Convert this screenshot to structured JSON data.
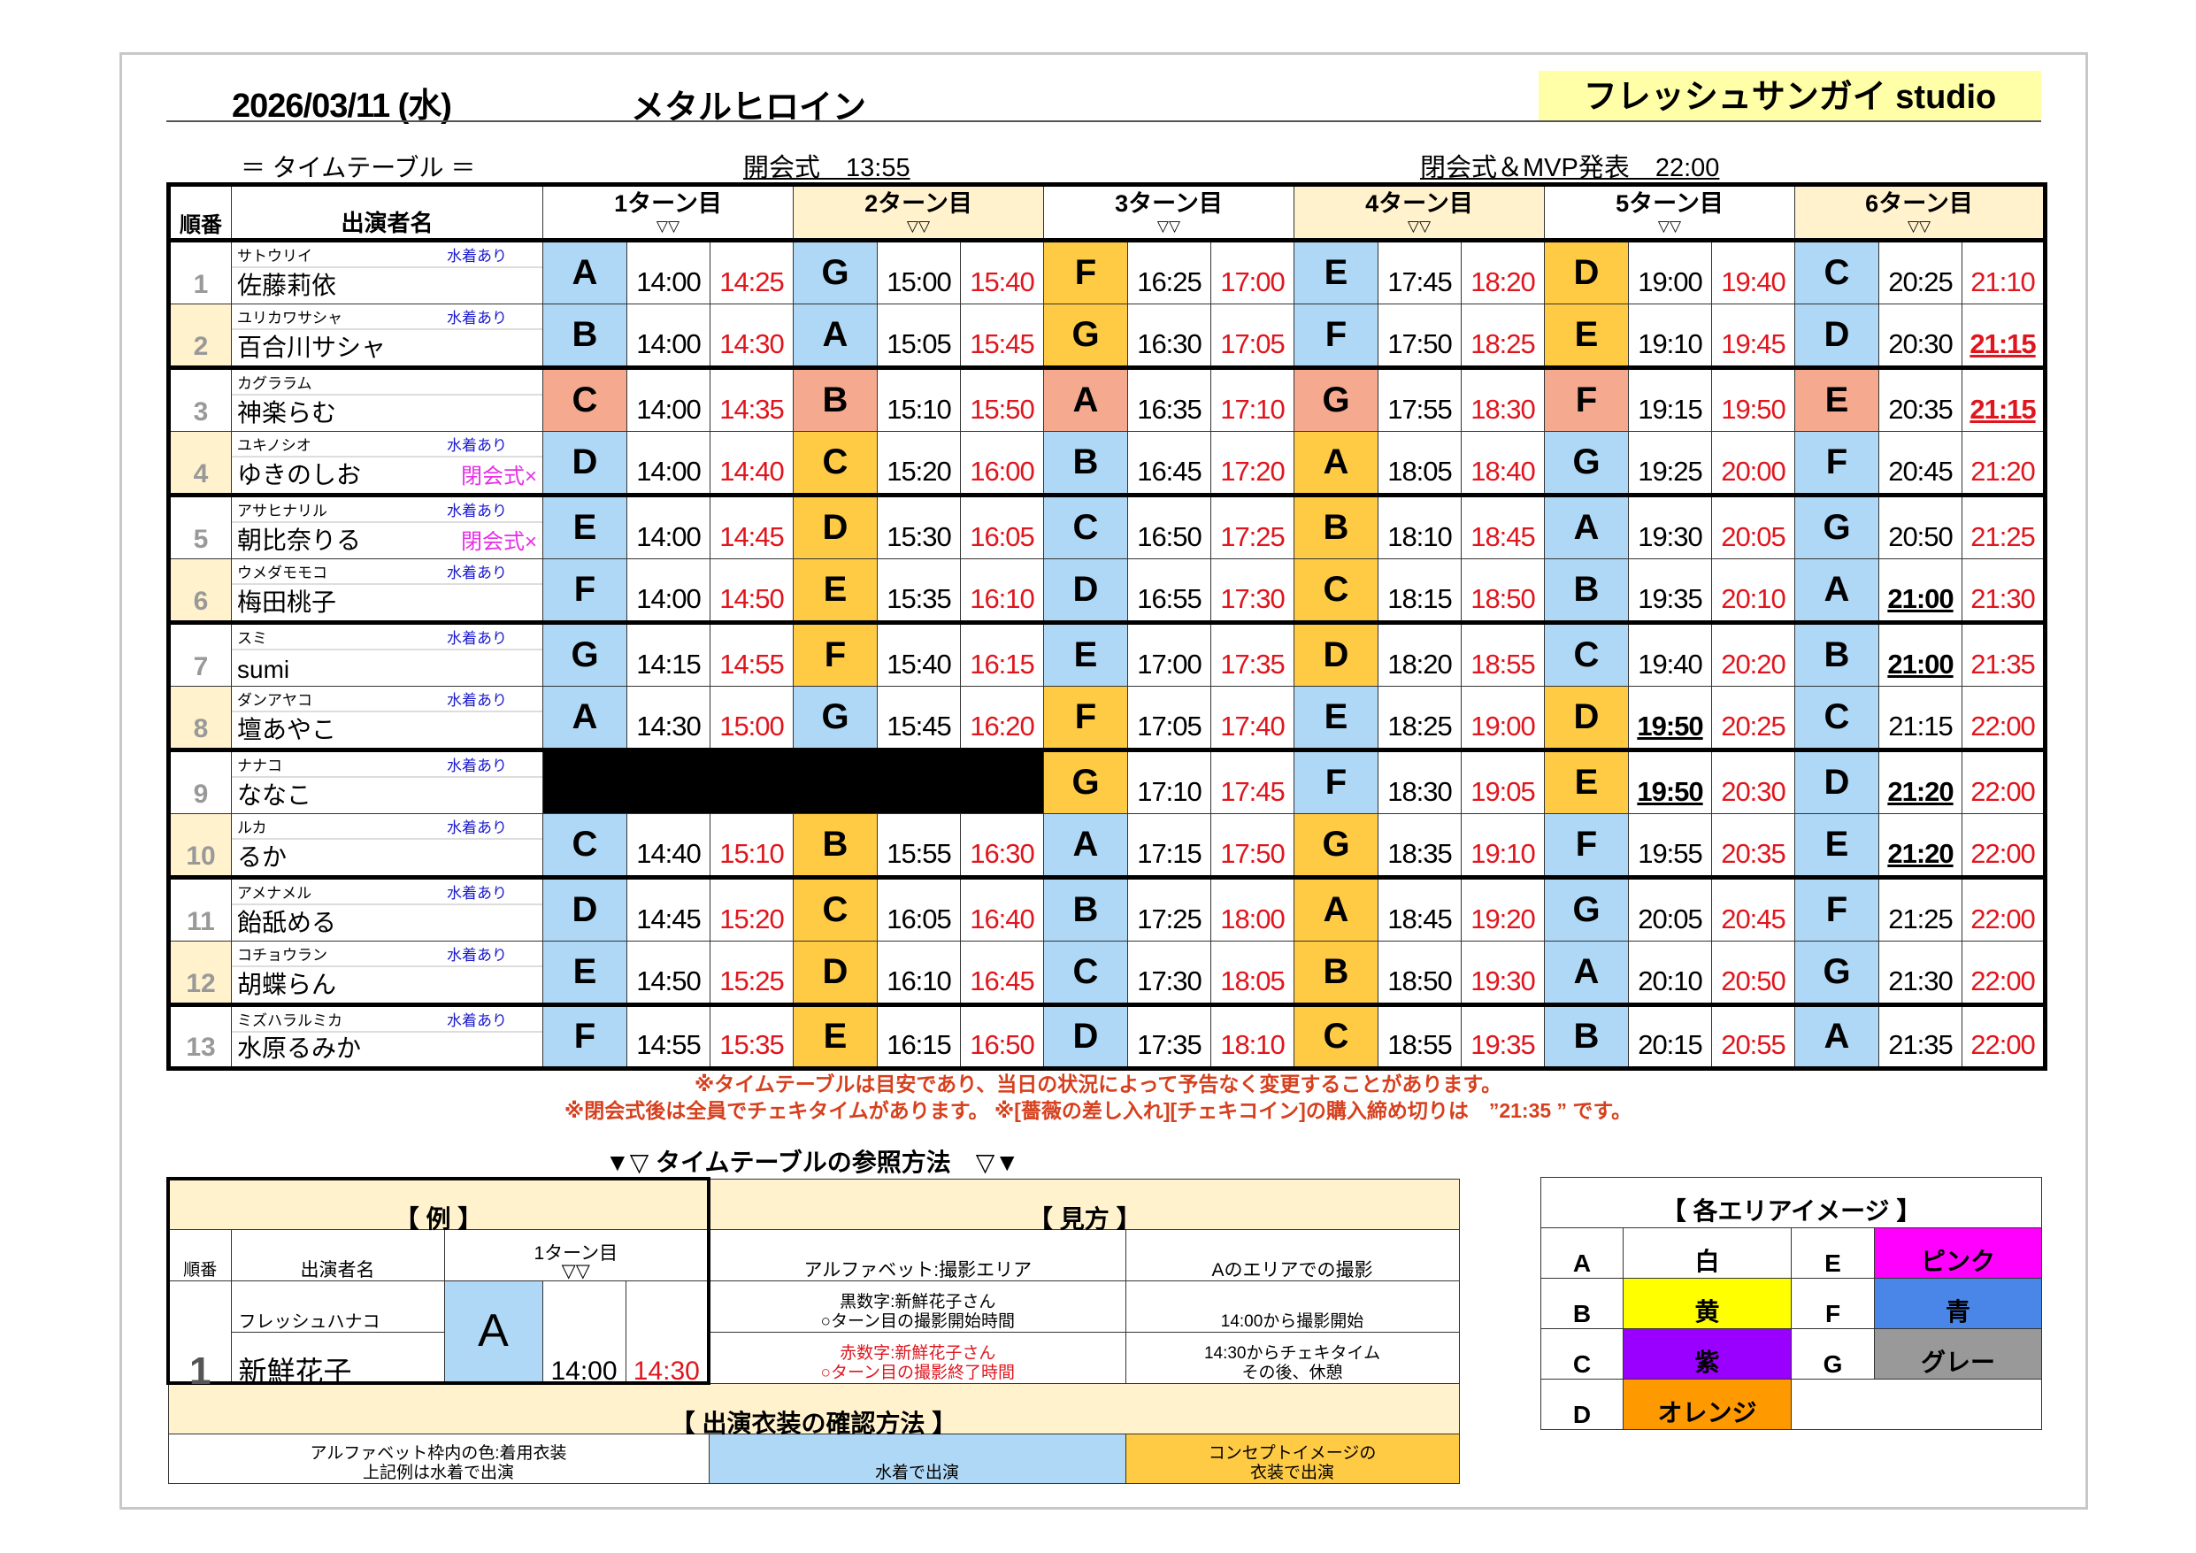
{
  "header": {
    "date": "2026/03/11 (水)",
    "event_title": "メタルヒロイン",
    "venue": "フレッシュサンガイ studio",
    "timetable_label": "＝ タイムテーブル ＝",
    "opening": "開会式　13:55",
    "closing": "閉会式＆MVP発表　22:00"
  },
  "columns": {
    "order": "順番",
    "performer": "出演者名",
    "turns": [
      "1ターン目",
      "2ターン目",
      "3ターン目",
      "4ターン目",
      "5ターン目",
      "6ターン目"
    ],
    "arrow": "▽▽"
  },
  "rows": [
    {
      "no": "1",
      "kana": "サトウリイ",
      "name": "佐藤莉依",
      "swim": "水着あり",
      "note": "",
      "turns": [
        {
          "area": "A",
          "start": "14:00",
          "end": "14:25",
          "color": "blue"
        },
        {
          "area": "G",
          "start": "15:00",
          "end": "15:40",
          "color": "blue"
        },
        {
          "area": "F",
          "start": "16:25",
          "end": "17:00",
          "color": "yellow"
        },
        {
          "area": "E",
          "start": "17:45",
          "end": "18:20",
          "color": "blue"
        },
        {
          "area": "D",
          "start": "19:00",
          "end": "19:40",
          "color": "yellow"
        },
        {
          "area": "C",
          "start": "20:25",
          "end": "21:10",
          "color": "blue"
        }
      ]
    },
    {
      "no": "2",
      "kana": "ユリカワサシャ",
      "name": "百合川サシャ",
      "swim": "水着あり",
      "note": "",
      "turns": [
        {
          "area": "B",
          "start": "14:00",
          "end": "14:30",
          "color": "blue"
        },
        {
          "area": "A",
          "start": "15:05",
          "end": "15:45",
          "color": "blue"
        },
        {
          "area": "G",
          "start": "16:30",
          "end": "17:05",
          "color": "yellow"
        },
        {
          "area": "F",
          "start": "17:50",
          "end": "18:25",
          "color": "blue"
        },
        {
          "area": "E",
          "start": "19:10",
          "end": "19:45",
          "color": "yellow"
        },
        {
          "area": "D",
          "start": "20:30",
          "end": "21:15",
          "color": "blue",
          "underline": "end"
        }
      ]
    },
    {
      "no": "3",
      "kana": "カグララム",
      "name": "神楽らむ",
      "swim": "",
      "note": "",
      "turns": [
        {
          "area": "C",
          "start": "14:00",
          "end": "14:35",
          "color": "salmon"
        },
        {
          "area": "B",
          "start": "15:10",
          "end": "15:50",
          "color": "salmon"
        },
        {
          "area": "A",
          "start": "16:35",
          "end": "17:10",
          "color": "salmon"
        },
        {
          "area": "G",
          "start": "17:55",
          "end": "18:30",
          "color": "salmon"
        },
        {
          "area": "F",
          "start": "19:15",
          "end": "19:50",
          "color": "salmon"
        },
        {
          "area": "E",
          "start": "20:35",
          "end": "21:15",
          "color": "salmon",
          "underline": "end"
        }
      ]
    },
    {
      "no": "4",
      "kana": "ユキノシオ",
      "name": "ゆきのしお",
      "swim": "水着あり",
      "note": "閉会式×",
      "turns": [
        {
          "area": "D",
          "start": "14:00",
          "end": "14:40",
          "color": "blue"
        },
        {
          "area": "C",
          "start": "15:20",
          "end": "16:00",
          "color": "yellow"
        },
        {
          "area": "B",
          "start": "16:45",
          "end": "17:20",
          "color": "blue"
        },
        {
          "area": "A",
          "start": "18:05",
          "end": "18:40",
          "color": "yellow"
        },
        {
          "area": "G",
          "start": "19:25",
          "end": "20:00",
          "color": "blue"
        },
        {
          "area": "F",
          "start": "20:45",
          "end": "21:20",
          "color": "blue"
        }
      ]
    },
    {
      "no": "5",
      "kana": "アサヒナリル",
      "name": "朝比奈りる",
      "swim": "水着あり",
      "note": "閉会式×",
      "turns": [
        {
          "area": "E",
          "start": "14:00",
          "end": "14:45",
          "color": "blue"
        },
        {
          "area": "D",
          "start": "15:30",
          "end": "16:05",
          "color": "yellow"
        },
        {
          "area": "C",
          "start": "16:50",
          "end": "17:25",
          "color": "blue"
        },
        {
          "area": "B",
          "start": "18:10",
          "end": "18:45",
          "color": "yellow"
        },
        {
          "area": "A",
          "start": "19:30",
          "end": "20:05",
          "color": "blue"
        },
        {
          "area": "G",
          "start": "20:50",
          "end": "21:25",
          "color": "blue"
        }
      ]
    },
    {
      "no": "6",
      "kana": "ウメダモモコ",
      "name": "梅田桃子",
      "swim": "水着あり",
      "note": "",
      "turns": [
        {
          "area": "F",
          "start": "14:00",
          "end": "14:50",
          "color": "blue"
        },
        {
          "area": "E",
          "start": "15:35",
          "end": "16:10",
          "color": "yellow"
        },
        {
          "area": "D",
          "start": "16:55",
          "end": "17:30",
          "color": "blue"
        },
        {
          "area": "C",
          "start": "18:15",
          "end": "18:50",
          "color": "yellow"
        },
        {
          "area": "B",
          "start": "19:35",
          "end": "20:10",
          "color": "blue"
        },
        {
          "area": "A",
          "start": "21:00",
          "end": "21:30",
          "color": "blue",
          "underline": "start"
        }
      ]
    },
    {
      "no": "7",
      "kana": "スミ",
      "name": "sumi",
      "swim": "水着あり",
      "note": "",
      "turns": [
        {
          "area": "G",
          "start": "14:15",
          "end": "14:55",
          "color": "blue"
        },
        {
          "area": "F",
          "start": "15:40",
          "end": "16:15",
          "color": "yellow"
        },
        {
          "area": "E",
          "start": "17:00",
          "end": "17:35",
          "color": "blue"
        },
        {
          "area": "D",
          "start": "18:20",
          "end": "18:55",
          "color": "yellow"
        },
        {
          "area": "C",
          "start": "19:40",
          "end": "20:20",
          "color": "blue"
        },
        {
          "area": "B",
          "start": "21:00",
          "end": "21:35",
          "color": "blue",
          "underline": "start"
        }
      ]
    },
    {
      "no": "8",
      "kana": "ダンアヤコ",
      "name": "壇あやこ",
      "swim": "水着あり",
      "note": "",
      "turns": [
        {
          "area": "A",
          "start": "14:30",
          "end": "15:00",
          "color": "blue"
        },
        {
          "area": "G",
          "start": "15:45",
          "end": "16:20",
          "color": "blue"
        },
        {
          "area": "F",
          "start": "17:05",
          "end": "17:40",
          "color": "yellow"
        },
        {
          "area": "E",
          "start": "18:25",
          "end": "19:00",
          "color": "blue"
        },
        {
          "area": "D",
          "start": "19:50",
          "end": "20:25",
          "color": "yellow",
          "underline": "start"
        },
        {
          "area": "C",
          "start": "21:15",
          "end": "22:00",
          "color": "blue"
        }
      ]
    },
    {
      "no": "9",
      "kana": "ナナコ",
      "name": "ななこ",
      "swim": "水着あり",
      "note": "",
      "turns": [
        null,
        null,
        {
          "area": "G",
          "start": "17:10",
          "end": "17:45",
          "color": "yellow"
        },
        {
          "area": "F",
          "start": "18:30",
          "end": "19:05",
          "color": "blue"
        },
        {
          "area": "E",
          "start": "19:50",
          "end": "20:30",
          "color": "yellow",
          "underline": "start"
        },
        {
          "area": "D",
          "start": "21:20",
          "end": "22:00",
          "color": "blue",
          "underline": "start"
        }
      ]
    },
    {
      "no": "10",
      "kana": "ルカ",
      "name": "るか",
      "swim": "水着あり",
      "note": "",
      "turns": [
        {
          "area": "C",
          "start": "14:40",
          "end": "15:10",
          "color": "blue"
        },
        {
          "area": "B",
          "start": "15:55",
          "end": "16:30",
          "color": "yellow"
        },
        {
          "area": "A",
          "start": "17:15",
          "end": "17:50",
          "color": "blue"
        },
        {
          "area": "G",
          "start": "18:35",
          "end": "19:10",
          "color": "yellow"
        },
        {
          "area": "F",
          "start": "19:55",
          "end": "20:35",
          "color": "blue"
        },
        {
          "area": "E",
          "start": "21:20",
          "end": "22:00",
          "color": "blue",
          "underline": "start"
        }
      ]
    },
    {
      "no": "11",
      "kana": "アメナメル",
      "name": "飴舐める",
      "swim": "水着あり",
      "note": "",
      "turns": [
        {
          "area": "D",
          "start": "14:45",
          "end": "15:20",
          "color": "blue"
        },
        {
          "area": "C",
          "start": "16:05",
          "end": "16:40",
          "color": "yellow"
        },
        {
          "area": "B",
          "start": "17:25",
          "end": "18:00",
          "color": "blue"
        },
        {
          "area": "A",
          "start": "18:45",
          "end": "19:20",
          "color": "yellow"
        },
        {
          "area": "G",
          "start": "20:05",
          "end": "20:45",
          "color": "blue"
        },
        {
          "area": "F",
          "start": "21:25",
          "end": "22:00",
          "color": "blue"
        }
      ]
    },
    {
      "no": "12",
      "kana": "コチョウラン",
      "name": "胡蝶らん",
      "swim": "水着あり",
      "note": "",
      "turns": [
        {
          "area": "E",
          "start": "14:50",
          "end": "15:25",
          "color": "blue"
        },
        {
          "area": "D",
          "start": "16:10",
          "end": "16:45",
          "color": "yellow"
        },
        {
          "area": "C",
          "start": "17:30",
          "end": "18:05",
          "color": "blue"
        },
        {
          "area": "B",
          "start": "18:50",
          "end": "19:30",
          "color": "yellow"
        },
        {
          "area": "A",
          "start": "20:10",
          "end": "20:50",
          "color": "blue"
        },
        {
          "area": "G",
          "start": "21:30",
          "end": "22:00",
          "color": "blue"
        }
      ]
    },
    {
      "no": "13",
      "kana": "ミズハラルミカ",
      "name": "水原るみか",
      "swim": "水着あり",
      "note": "",
      "turns": [
        {
          "area": "F",
          "start": "14:55",
          "end": "15:35",
          "color": "blue"
        },
        {
          "area": "E",
          "start": "16:15",
          "end": "16:50",
          "color": "yellow"
        },
        {
          "area": "D",
          "start": "17:35",
          "end": "18:10",
          "color": "blue"
        },
        {
          "area": "C",
          "start": "18:55",
          "end": "19:35",
          "color": "yellow"
        },
        {
          "area": "B",
          "start": "20:15",
          "end": "20:55",
          "color": "blue"
        },
        {
          "area": "A",
          "start": "21:35",
          "end": "22:00",
          "color": "blue"
        }
      ]
    }
  ],
  "notes": [
    "※タイムテーブルは目安であり、当日の状況によって予告なく変更することがあります。",
    "※閉会式後は全員でチェキタイムがあります。 ※[薔薇の差し入れ][チェキコイン]の購入締め切りは　”21:35 ” です。"
  ],
  "reference": {
    "title": "▼▽ タイムテーブルの参照方法　▽▼",
    "example_header": "【 例 】",
    "howto_header": "【 見方 】",
    "example": {
      "order_label": "順番",
      "name_label": "出演者名",
      "turn_label": "1ターン目",
      "arrow": "▽▽",
      "no": "1",
      "kana": "フレッシュハナコ",
      "name": "新鮮花子",
      "area": "A",
      "start": "14:00",
      "end": "14:30"
    },
    "howto": [
      [
        "アルファベット:撮影エリア",
        "Aのエリアでの撮影"
      ],
      [
        "黒数字:新鮮花子さん\n○ターン目の撮影開始時間",
        "14:00から撮影開始"
      ],
      [
        "赤数字:新鮮花子さん\n○ターン目の撮影終了時間",
        "14:30からチェキタイム\nその後、休憩"
      ]
    ],
    "costume_header": "【 出演衣装の確認方法 】",
    "costume": [
      "アルファベット枠内の色:着用衣装\n上記例は水着で出演",
      "水着で出演",
      "コンセプトイメージの\n衣装で出演"
    ]
  },
  "legend": {
    "title": "【 各エリアイメージ 】",
    "items": [
      {
        "area": "A",
        "label": "白",
        "color": "#ffffff"
      },
      {
        "area": "B",
        "label": "黄",
        "color": "#ffff00"
      },
      {
        "area": "C",
        "label": "紫",
        "color": "#9900ff"
      },
      {
        "area": "D",
        "label": "オレンジ",
        "color": "#ff9900"
      },
      {
        "area": "E",
        "label": "ピンク",
        "color": "#ff00ff"
      },
      {
        "area": "F",
        "label": "青",
        "color": "#4a86e8"
      },
      {
        "area": "G",
        "label": "グレー",
        "color": "#999999"
      }
    ]
  },
  "colors": {
    "swimsuit": "#afd8f6",
    "concept": "#ffcb45",
    "no_swimsuit": "#f5a98f",
    "header_cream": "#fff2cc",
    "venue_bg": "#ffffa8",
    "end_time": "#e0161e",
    "note_text": "#d6401e"
  }
}
